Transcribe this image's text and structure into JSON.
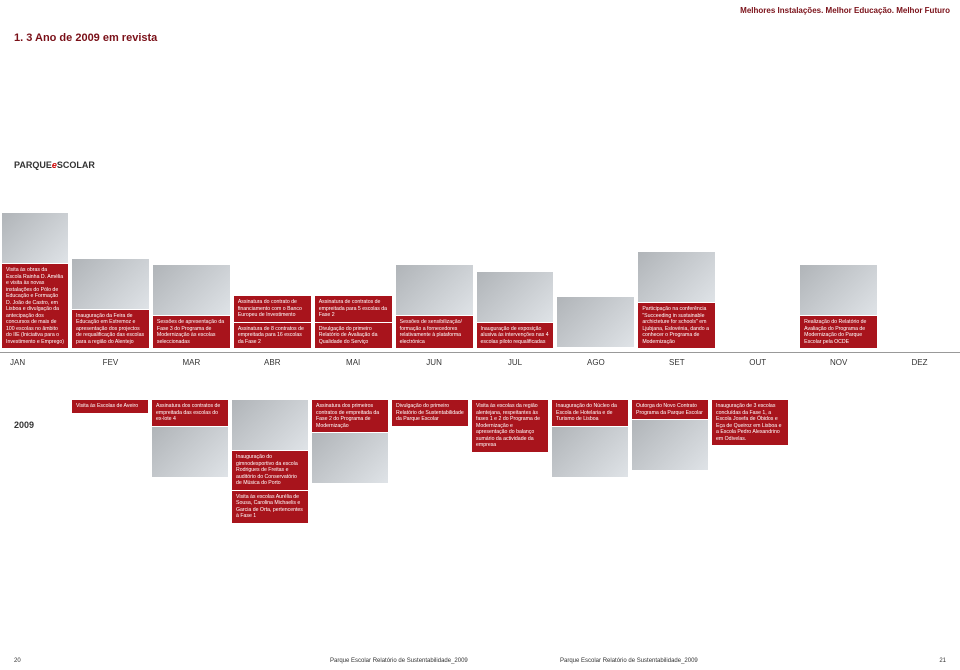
{
  "header_tagline": "Melhores Instalações. Melhor Educação. Melhor Futuro",
  "section_title": "1. 3 Ano de 2009 em revista",
  "logo_text_a": "PARQUE",
  "logo_text_b": "SCOLAR",
  "months": [
    "JAN",
    "FEV",
    "MAR",
    "ABR",
    "MAI",
    "JUN",
    "JUL",
    "AGO",
    "SET",
    "OUT",
    "NOV",
    "DEZ"
  ],
  "year": "2009",
  "colors": {
    "brand_red": "#a8141c",
    "title_red": "#7a1018",
    "line": "#999999",
    "bg": "#ffffff",
    "photo_a": "#b0b4b8",
    "photo_b": "#dfe3e7"
  },
  "top_cards": [
    {
      "month": "JAN",
      "has_photo": true,
      "texts": [
        "Visita às obras da Escola Rainha D. Amélia e visita às novas instalações do Pólo de Educação e Formação D. João de Castro, em Lisboa e divulgação da antecipação dos concursos de mais de 100 escolas no âmbito do IIE (Iniciativa para o Investimento e Emprego)"
      ]
    },
    {
      "month": "FEV",
      "has_photo": true,
      "texts": [
        "Inauguração da Feira de Educação em Estremoz e apresentação dos projectos de requalificação das escolas para a região do Alentejo"
      ]
    },
    {
      "month": "MAR",
      "has_photo": true,
      "texts": [
        "Sessões de apresentação da Fase 3 do Programa de Modernização às escolas seleccionadas"
      ]
    },
    {
      "month": "ABR",
      "has_photo": false,
      "texts": [
        "Assinatura do contrato de financiamento com o Banco Europeu de Investimento",
        "Assinatura de 8 contratos de empreitada para 16 escolas da Fase 2"
      ]
    },
    {
      "month": "MAI",
      "has_photo": false,
      "texts": [
        "Assinatura de contratos de empreitada para 5 escolas da Fase 2",
        "Divulgação do primeiro Relatório de Avaliação da Qualidade do Serviço"
      ]
    },
    {
      "month": "JUN",
      "has_photo": true,
      "texts": [
        "Sessões de sensibilização/ formação a fornecedores relativamente à plataforma electrónica"
      ]
    },
    {
      "month": "JUL",
      "has_photo": true,
      "texts": [
        "Inauguração de exposição alusiva às intervenções nas 4 escolas piloto requalificadas"
      ]
    },
    {
      "month": "AGO",
      "has_photo": true,
      "texts": []
    },
    {
      "month": "SET",
      "has_photo": true,
      "texts": [
        "Participação na conferência \"Succeeding in sustainable archicteture for schools\" em Ljubjana, Eslovénia, dando a conhecer o Programa de Modernização"
      ]
    },
    {
      "month": "OUT",
      "has_photo": false,
      "texts": []
    },
    {
      "month": "NOV",
      "has_photo": true,
      "texts": [
        "Realização do Relatório de Avaliação do Programa de Modernização do Parque Escolar pela OCDE"
      ]
    },
    {
      "month": "DEZ",
      "has_photo": false,
      "texts": []
    }
  ],
  "bottom_cards": [
    {
      "texts": [
        "Visita às Escolas de Aveiro"
      ],
      "has_photo": false
    },
    {
      "texts": [
        "Assinatura dos contratos de empreitada das escolas do ex-lote 4"
      ],
      "has_photo": true
    },
    {
      "texts": [
        "Inauguração do gimnodesportivo da escola Rodrigues de Freitas e auditório do Conservatório de Música do Porto",
        "Visita às escolas Aurélia de Sousa, Carolina Michaelis e Garcia de Orta, pertencentes à Fase 1"
      ],
      "has_photo": true,
      "photo_first": true
    },
    {
      "texts": [
        "Assinatura dos primeiros contratos de empreitada da Fase 2 do Programa de Modernização"
      ],
      "has_photo": true
    },
    {
      "texts": [
        "Divulgação do primeiro Relatório de Sustentabilidade da Parque Escolar"
      ],
      "has_photo": false
    },
    {
      "texts": [
        "Visita às escolas da região alentejana, respeitantes às fases 1 e 2 do Programa de Modernização e apresentação do balanço sumário da actividade da empresa"
      ],
      "has_photo": false
    },
    {
      "texts": [
        "Inauguração do Núcleo da Escola de Hotelaria e de Turismo de Lisboa"
      ],
      "has_photo": true
    },
    {
      "texts": [
        "Outorga do Novo Contrato Programa da Parque Escolar"
      ],
      "has_photo": true
    },
    {
      "texts": [
        "Inauguração de 3 escolas concluídas da Fase 1, a Escola Josefa de Óbidos e Eça de Queiroz em Lisboa e a Escola Pedro Alexandrino em Odivelas."
      ],
      "has_photo": false
    },
    {
      "texts": [],
      "has_photo": false
    },
    {
      "texts": [],
      "has_photo": false
    }
  ],
  "footer": {
    "page_left": "20",
    "center_a": "Parque Escolar Relatório de Sustentabilidade_2009",
    "center_b": "Parque Escolar Relatório de Sustentabilidade_2009",
    "page_right": "21"
  }
}
